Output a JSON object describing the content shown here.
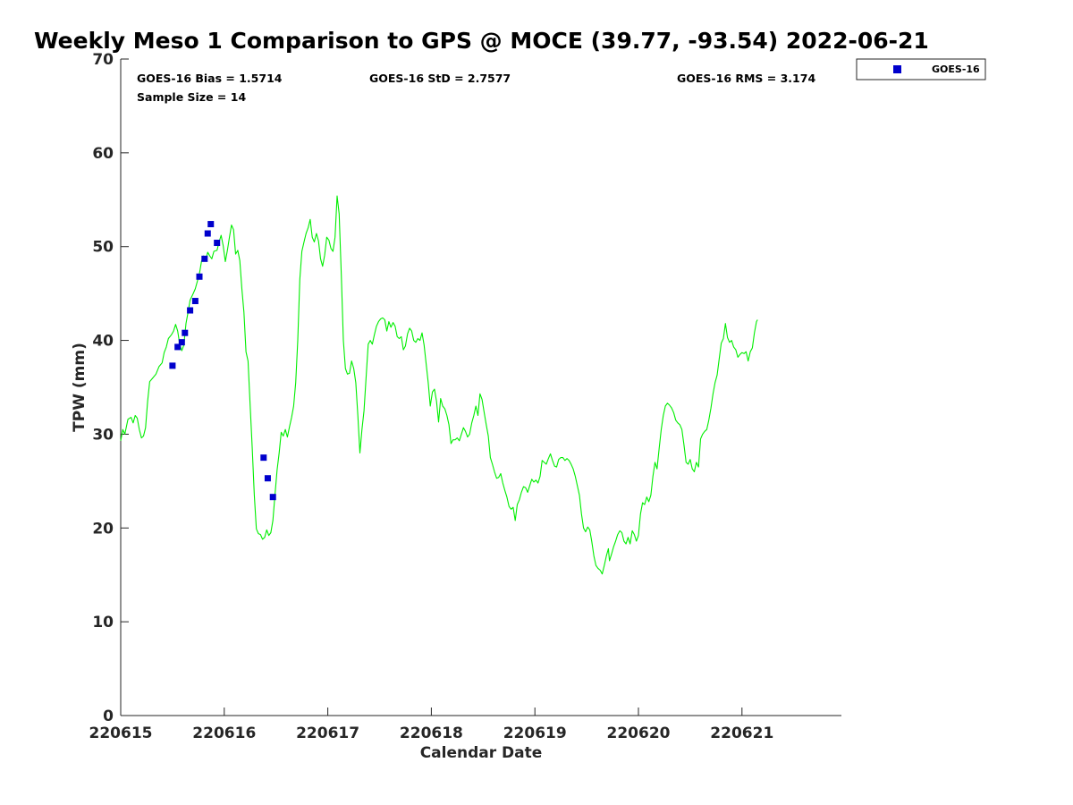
{
  "chart_data": {
    "type": "line+scatter",
    "title": "Weekly Meso 1 Comparison to GPS @ MOCE (39.77, -93.54) 2022-06-21",
    "xlabel": "Calendar Date",
    "ylabel": "TPW (mm)",
    "xlim": [
      0,
      6.95
    ],
    "ylim": [
      0,
      70
    ],
    "x_ticks": [
      {
        "value": 0,
        "label": "220615"
      },
      {
        "value": 1,
        "label": "220616"
      },
      {
        "value": 2,
        "label": "220617"
      },
      {
        "value": 3,
        "label": "220618"
      },
      {
        "value": 4,
        "label": "220619"
      },
      {
        "value": 5,
        "label": "220620"
      },
      {
        "value": 6,
        "label": "220621"
      }
    ],
    "y_ticks": [
      {
        "value": 0,
        "label": "0"
      },
      {
        "value": 10,
        "label": "10"
      },
      {
        "value": 20,
        "label": "20"
      },
      {
        "value": 30,
        "label": "30"
      },
      {
        "value": 40,
        "label": "40"
      },
      {
        "value": 50,
        "label": "50"
      },
      {
        "value": 60,
        "label": "60"
      },
      {
        "value": 70,
        "label": "70"
      }
    ],
    "stats": {
      "bias": "GOES-16 Bias = 1.5714",
      "std": "GOES-16 StD = 2.7577",
      "rms": "GOES-16 RMS = 3.174",
      "sample": "Sample Size = 14"
    },
    "legend": {
      "position": "top-right",
      "entries": [
        {
          "label": "GOES-16",
          "color": "#0000cc",
          "marker": "square"
        }
      ]
    },
    "gps_series": {
      "name": "GPS",
      "color": "#00ee00",
      "points": [
        [
          0.0,
          29.3
        ],
        [
          0.02,
          30.5
        ],
        [
          0.04,
          30.0
        ],
        [
          0.07,
          31.6
        ],
        [
          0.1,
          31.8
        ],
        [
          0.12,
          31.2
        ],
        [
          0.14,
          32.0
        ],
        [
          0.16,
          31.7
        ],
        [
          0.18,
          30.5
        ],
        [
          0.2,
          29.6
        ],
        [
          0.22,
          29.8
        ],
        [
          0.24,
          30.7
        ],
        [
          0.26,
          33.5
        ],
        [
          0.28,
          35.6
        ],
        [
          0.31,
          36.0
        ],
        [
          0.34,
          36.4
        ],
        [
          0.37,
          37.2
        ],
        [
          0.4,
          37.6
        ],
        [
          0.42,
          38.7
        ],
        [
          0.44,
          39.3
        ],
        [
          0.46,
          40.2
        ],
        [
          0.49,
          40.6
        ],
        [
          0.51,
          41.0
        ],
        [
          0.53,
          41.7
        ],
        [
          0.55,
          41.0
        ],
        [
          0.57,
          39.6
        ],
        [
          0.59,
          38.9
        ],
        [
          0.61,
          39.5
        ],
        [
          0.63,
          41.8
        ],
        [
          0.65,
          43.0
        ],
        [
          0.67,
          44.3
        ],
        [
          0.7,
          45.0
        ],
        [
          0.72,
          45.5
        ],
        [
          0.74,
          46.3
        ],
        [
          0.76,
          47.1
        ],
        [
          0.78,
          48.4
        ],
        [
          0.8,
          49.0
        ],
        [
          0.82,
          48.5
        ],
        [
          0.84,
          49.4
        ],
        [
          0.86,
          49.0
        ],
        [
          0.88,
          48.7
        ],
        [
          0.9,
          49.5
        ],
        [
          0.93,
          49.6
        ],
        [
          0.95,
          50.5
        ],
        [
          0.97,
          51.2
        ],
        [
          0.99,
          50.1
        ],
        [
          1.01,
          48.4
        ],
        [
          1.03,
          49.6
        ],
        [
          1.05,
          51.0
        ],
        [
          1.07,
          52.3
        ],
        [
          1.09,
          51.8
        ],
        [
          1.11,
          49.2
        ],
        [
          1.13,
          49.6
        ],
        [
          1.15,
          48.5
        ],
        [
          1.17,
          45.5
        ],
        [
          1.19,
          43.0
        ],
        [
          1.21,
          38.8
        ],
        [
          1.23,
          37.8
        ],
        [
          1.25,
          33.0
        ],
        [
          1.27,
          28.5
        ],
        [
          1.29,
          23.5
        ],
        [
          1.31,
          19.9
        ],
        [
          1.33,
          19.4
        ],
        [
          1.35,
          19.3
        ],
        [
          1.37,
          18.8
        ],
        [
          1.39,
          19.0
        ],
        [
          1.41,
          19.8
        ],
        [
          1.43,
          19.2
        ],
        [
          1.45,
          19.5
        ],
        [
          1.47,
          20.8
        ],
        [
          1.49,
          23.5
        ],
        [
          1.51,
          26.2
        ],
        [
          1.53,
          28.0
        ],
        [
          1.55,
          30.2
        ],
        [
          1.57,
          29.8
        ],
        [
          1.59,
          30.5
        ],
        [
          1.61,
          29.7
        ],
        [
          1.63,
          30.8
        ],
        [
          1.65,
          31.8
        ],
        [
          1.67,
          33.0
        ],
        [
          1.69,
          35.5
        ],
        [
          1.71,
          40.0
        ],
        [
          1.73,
          46.5
        ],
        [
          1.75,
          49.5
        ],
        [
          1.77,
          50.5
        ],
        [
          1.79,
          51.4
        ],
        [
          1.81,
          52.0
        ],
        [
          1.83,
          52.9
        ],
        [
          1.85,
          51.0
        ],
        [
          1.87,
          50.5
        ],
        [
          1.89,
          51.4
        ],
        [
          1.91,
          50.6
        ],
        [
          1.93,
          48.7
        ],
        [
          1.95,
          47.9
        ],
        [
          1.97,
          49.1
        ],
        [
          1.99,
          51.0
        ],
        [
          2.01,
          50.7
        ],
        [
          2.03,
          49.8
        ],
        [
          2.05,
          49.5
        ],
        [
          2.07,
          51.0
        ],
        [
          2.09,
          55.4
        ],
        [
          2.11,
          53.5
        ],
        [
          2.13,
          47.0
        ],
        [
          2.15,
          40.0
        ],
        [
          2.17,
          37.0
        ],
        [
          2.19,
          36.4
        ],
        [
          2.21,
          36.5
        ],
        [
          2.23,
          37.8
        ],
        [
          2.25,
          37.0
        ],
        [
          2.27,
          35.5
        ],
        [
          2.29,
          32.0
        ],
        [
          2.31,
          28.0
        ],
        [
          2.33,
          30.5
        ],
        [
          2.35,
          32.5
        ],
        [
          2.37,
          36.0
        ],
        [
          2.39,
          39.6
        ],
        [
          2.41,
          40.0
        ],
        [
          2.43,
          39.6
        ],
        [
          2.45,
          40.6
        ],
        [
          2.47,
          41.5
        ],
        [
          2.49,
          42.0
        ],
        [
          2.51,
          42.3
        ],
        [
          2.53,
          42.4
        ],
        [
          2.55,
          42.2
        ],
        [
          2.57,
          41.0
        ],
        [
          2.59,
          42.0
        ],
        [
          2.61,
          41.4
        ],
        [
          2.63,
          41.9
        ],
        [
          2.65,
          41.5
        ],
        [
          2.67,
          40.4
        ],
        [
          2.69,
          40.2
        ],
        [
          2.71,
          40.4
        ],
        [
          2.73,
          39.0
        ],
        [
          2.75,
          39.4
        ],
        [
          2.77,
          40.7
        ],
        [
          2.79,
          41.3
        ],
        [
          2.81,
          41.0
        ],
        [
          2.83,
          40.0
        ],
        [
          2.85,
          39.8
        ],
        [
          2.87,
          40.2
        ],
        [
          2.89,
          40.0
        ],
        [
          2.91,
          40.8
        ],
        [
          2.93,
          39.5
        ],
        [
          2.95,
          37.5
        ],
        [
          2.97,
          35.5
        ],
        [
          2.99,
          33.0
        ],
        [
          3.01,
          34.5
        ],
        [
          3.03,
          34.8
        ],
        [
          3.05,
          33.5
        ],
        [
          3.07,
          31.3
        ],
        [
          3.09,
          33.8
        ],
        [
          3.11,
          33.0
        ],
        [
          3.13,
          32.7
        ],
        [
          3.15,
          32.0
        ],
        [
          3.17,
          31.0
        ],
        [
          3.19,
          29.0
        ],
        [
          3.21,
          29.4
        ],
        [
          3.23,
          29.4
        ],
        [
          3.25,
          29.6
        ],
        [
          3.27,
          29.3
        ],
        [
          3.29,
          30.0
        ],
        [
          3.31,
          30.7
        ],
        [
          3.33,
          30.3
        ],
        [
          3.35,
          29.7
        ],
        [
          3.37,
          30.0
        ],
        [
          3.39,
          31.2
        ],
        [
          3.41,
          32.0
        ],
        [
          3.43,
          33.0
        ],
        [
          3.45,
          32.0
        ],
        [
          3.47,
          34.3
        ],
        [
          3.49,
          33.7
        ],
        [
          3.51,
          32.3
        ],
        [
          3.53,
          31.0
        ],
        [
          3.55,
          29.8
        ],
        [
          3.57,
          27.5
        ],
        [
          3.59,
          26.8
        ],
        [
          3.61,
          26.0
        ],
        [
          3.63,
          25.3
        ],
        [
          3.65,
          25.4
        ],
        [
          3.67,
          25.8
        ],
        [
          3.69,
          24.8
        ],
        [
          3.71,
          24.0
        ],
        [
          3.73,
          23.3
        ],
        [
          3.75,
          22.3
        ],
        [
          3.77,
          22.0
        ],
        [
          3.79,
          22.2
        ],
        [
          3.81,
          20.8
        ],
        [
          3.83,
          22.5
        ],
        [
          3.85,
          23.0
        ],
        [
          3.87,
          23.8
        ],
        [
          3.89,
          24.4
        ],
        [
          3.91,
          24.3
        ],
        [
          3.93,
          23.8
        ],
        [
          3.95,
          24.5
        ],
        [
          3.97,
          25.2
        ],
        [
          3.99,
          24.9
        ],
        [
          4.01,
          25.1
        ],
        [
          4.03,
          24.8
        ],
        [
          4.05,
          25.5
        ],
        [
          4.07,
          27.2
        ],
        [
          4.09,
          27.0
        ],
        [
          4.11,
          26.8
        ],
        [
          4.13,
          27.4
        ],
        [
          4.15,
          27.9
        ],
        [
          4.17,
          27.2
        ],
        [
          4.19,
          26.6
        ],
        [
          4.21,
          26.5
        ],
        [
          4.23,
          27.3
        ],
        [
          4.25,
          27.5
        ],
        [
          4.27,
          27.5
        ],
        [
          4.29,
          27.2
        ],
        [
          4.31,
          27.4
        ],
        [
          4.33,
          27.2
        ],
        [
          4.35,
          26.8
        ],
        [
          4.37,
          26.3
        ],
        [
          4.39,
          25.5
        ],
        [
          4.41,
          24.5
        ],
        [
          4.43,
          23.5
        ],
        [
          4.45,
          21.5
        ],
        [
          4.47,
          20.0
        ],
        [
          4.49,
          19.6
        ],
        [
          4.51,
          20.1
        ],
        [
          4.53,
          19.8
        ],
        [
          4.55,
          18.5
        ],
        [
          4.57,
          17.0
        ],
        [
          4.59,
          16.0
        ],
        [
          4.61,
          15.7
        ],
        [
          4.63,
          15.5
        ],
        [
          4.65,
          15.1
        ],
        [
          4.67,
          16.0
        ],
        [
          4.69,
          17.0
        ],
        [
          4.71,
          17.8
        ],
        [
          4.72,
          16.5
        ],
        [
          4.74,
          17.2
        ],
        [
          4.76,
          18.0
        ],
        [
          4.78,
          18.6
        ],
        [
          4.8,
          19.3
        ],
        [
          4.82,
          19.7
        ],
        [
          4.84,
          19.5
        ],
        [
          4.86,
          18.6
        ],
        [
          4.88,
          18.3
        ],
        [
          4.9,
          19.0
        ],
        [
          4.92,
          18.3
        ],
        [
          4.94,
          19.7
        ],
        [
          4.96,
          19.3
        ],
        [
          4.98,
          18.6
        ],
        [
          5.0,
          19.2
        ],
        [
          5.02,
          21.5
        ],
        [
          5.04,
          22.7
        ],
        [
          5.06,
          22.5
        ],
        [
          5.08,
          23.3
        ],
        [
          5.1,
          22.8
        ],
        [
          5.12,
          23.5
        ],
        [
          5.14,
          25.5
        ],
        [
          5.16,
          27.0
        ],
        [
          5.18,
          26.3
        ],
        [
          5.2,
          28.5
        ],
        [
          5.22,
          30.5
        ],
        [
          5.24,
          32.0
        ],
        [
          5.26,
          33.0
        ],
        [
          5.28,
          33.3
        ],
        [
          5.3,
          33.1
        ],
        [
          5.32,
          32.8
        ],
        [
          5.34,
          32.3
        ],
        [
          5.36,
          31.5
        ],
        [
          5.38,
          31.2
        ],
        [
          5.4,
          31.0
        ],
        [
          5.42,
          30.5
        ],
        [
          5.44,
          28.8
        ],
        [
          5.46,
          27.0
        ],
        [
          5.48,
          26.8
        ],
        [
          5.5,
          27.3
        ],
        [
          5.52,
          26.3
        ],
        [
          5.54,
          26.0
        ],
        [
          5.56,
          27.0
        ],
        [
          5.58,
          26.5
        ],
        [
          5.6,
          29.5
        ],
        [
          5.62,
          30.0
        ],
        [
          5.64,
          30.3
        ],
        [
          5.66,
          30.5
        ],
        [
          5.68,
          31.5
        ],
        [
          5.7,
          32.8
        ],
        [
          5.72,
          34.3
        ],
        [
          5.74,
          35.5
        ],
        [
          5.76,
          36.3
        ],
        [
          5.78,
          38.0
        ],
        [
          5.8,
          39.7
        ],
        [
          5.82,
          40.2
        ],
        [
          5.84,
          41.8
        ],
        [
          5.86,
          40.3
        ],
        [
          5.88,
          39.8
        ],
        [
          5.9,
          40.0
        ],
        [
          5.92,
          39.3
        ],
        [
          5.94,
          39.0
        ],
        [
          5.96,
          38.2
        ],
        [
          5.98,
          38.5
        ],
        [
          6.0,
          38.7
        ],
        [
          6.02,
          38.6
        ],
        [
          6.04,
          38.8
        ],
        [
          6.06,
          37.8
        ],
        [
          6.08,
          38.8
        ],
        [
          6.1,
          39.2
        ],
        [
          6.12,
          40.8
        ],
        [
          6.14,
          42.0
        ],
        [
          6.15,
          42.2
        ]
      ]
    },
    "goes_series": {
      "name": "GOES-16",
      "color": "#0000cc",
      "x": [
        0.5,
        0.55,
        0.59,
        0.62,
        0.67,
        0.72,
        0.76,
        0.81,
        0.84,
        0.87,
        0.93,
        1.38,
        1.42,
        1.47
      ],
      "y": [
        37.3,
        39.3,
        39.8,
        40.8,
        43.2,
        44.2,
        46.8,
        48.7,
        51.4,
        52.4,
        50.4,
        27.5,
        25.3,
        23.3
      ]
    }
  }
}
